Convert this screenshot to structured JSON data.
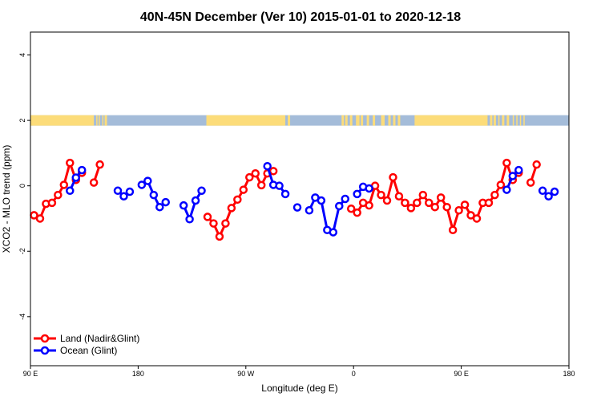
{
  "chart_data": {
    "type": "line",
    "title": "40N-45N December (Ver 10)   2015-01-01 to 2020-12-18",
    "xlabel": "Longitude (deg E)",
    "ylabel": "XCO2 - MLO trend (ppm)",
    "xlim": [
      90,
      540
    ],
    "ylim": [
      -5.5,
      4.7
    ],
    "x_axis_note": "x in degrees east, unwrapped so that 90 E on the left edge continues through 180, 270 (=90 W), 360 (=0), 450 (=90 E) to 540 (=180)",
    "x_ticks": [
      {
        "value": 90,
        "label": "90 E"
      },
      {
        "value": 180,
        "label": "180"
      },
      {
        "value": 270,
        "label": "90 W"
      },
      {
        "value": 360,
        "label": "0"
      },
      {
        "value": 450,
        "label": "90 E"
      },
      {
        "value": 540,
        "label": "180"
      }
    ],
    "y_ticks": [
      {
        "value": -4,
        "label": "-4"
      },
      {
        "value": -2,
        "label": "-2"
      },
      {
        "value": 0,
        "label": "0"
      },
      {
        "value": 2,
        "label": "2"
      },
      {
        "value": 4,
        "label": "4"
      }
    ],
    "land_strip": {
      "y_center": 2.0,
      "height": 0.32,
      "land_color": "#fcdc7a",
      "ocean_color": "#a4bcd9",
      "land_ranges": [
        [
          90,
          143
        ],
        [
          145,
          146
        ],
        [
          147,
          148
        ],
        [
          150,
          151
        ],
        [
          152,
          154
        ],
        [
          237,
          303
        ],
        [
          305,
          307
        ],
        [
          350,
          352
        ],
        [
          353,
          355
        ],
        [
          357,
          359
        ],
        [
          362,
          365
        ],
        [
          366,
          368
        ],
        [
          371,
          373
        ],
        [
          376,
          378
        ],
        [
          383,
          386
        ],
        [
          389,
          391
        ],
        [
          393,
          395
        ],
        [
          397,
          399
        ],
        [
          411,
          472
        ],
        [
          474,
          476
        ],
        [
          477,
          479
        ],
        [
          481,
          482
        ],
        [
          484,
          486
        ],
        [
          488,
          490
        ],
        [
          493,
          494
        ],
        [
          496,
          497
        ],
        [
          499,
          500
        ],
        [
          502,
          503
        ]
      ]
    },
    "legend": {
      "placement": "bottom-left",
      "entries": [
        "Land (Nadir&Glint)",
        "Ocean (Glint)"
      ]
    },
    "series": [
      {
        "name": "Land (Nadir&Glint)",
        "color": "#ff0000",
        "segments": [
          [
            [
              93,
              -0.9
            ],
            [
              98,
              -1.0
            ],
            [
              103,
              -0.55
            ],
            [
              108,
              -0.52
            ],
            [
              113,
              -0.28
            ],
            [
              118,
              0.03
            ],
            [
              123,
              0.7
            ],
            [
              128,
              0.18
            ],
            [
              133,
              0.4
            ]
          ],
          [
            [
              143,
              0.1
            ],
            [
              148,
              0.65
            ]
          ],
          [
            [
              238,
              -0.95
            ],
            [
              243,
              -1.15
            ],
            [
              248,
              -1.55
            ],
            [
              253,
              -1.15
            ],
            [
              258,
              -0.68
            ],
            [
              263,
              -0.42
            ],
            [
              268,
              -0.12
            ],
            [
              273,
              0.26
            ],
            [
              278,
              0.38
            ],
            [
              283,
              0.02
            ],
            [
              288,
              0.38
            ],
            [
              293,
              0.45
            ]
          ],
          [
            [
              358,
              -0.7
            ],
            [
              363,
              -0.82
            ],
            [
              368,
              -0.52
            ],
            [
              373,
              -0.6
            ],
            [
              378,
              0.0
            ],
            [
              383,
              -0.28
            ],
            [
              388,
              -0.45
            ],
            [
              393,
              0.26
            ],
            [
              398,
              -0.32
            ],
            [
              403,
              -0.52
            ],
            [
              408,
              -0.68
            ],
            [
              413,
              -0.52
            ],
            [
              418,
              -0.28
            ],
            [
              423,
              -0.52
            ],
            [
              428,
              -0.65
            ],
            [
              433,
              -0.36
            ],
            [
              438,
              -0.65
            ],
            [
              443,
              -1.35
            ],
            [
              448,
              -0.75
            ],
            [
              453,
              -0.58
            ],
            [
              458,
              -0.9
            ],
            [
              463,
              -1.0
            ],
            [
              468,
              -0.52
            ],
            [
              473,
              -0.52
            ],
            [
              478,
              -0.28
            ],
            [
              483,
              0.03
            ],
            [
              488,
              0.7
            ],
            [
              493,
              0.18
            ],
            [
              498,
              0.4
            ]
          ],
          [
            [
              508,
              0.1
            ],
            [
              513,
              0.65
            ]
          ]
        ]
      },
      {
        "name": "Ocean (Glint)",
        "color": "#0000ff",
        "segments": [
          [
            [
              123,
              -0.15
            ],
            [
              128,
              0.25
            ],
            [
              133,
              0.48
            ]
          ],
          [
            [
              163,
              -0.15
            ],
            [
              168,
              -0.32
            ],
            [
              173,
              -0.18
            ]
          ],
          [
            [
              183,
              0.03
            ],
            [
              188,
              0.15
            ],
            [
              193,
              -0.28
            ],
            [
              198,
              -0.65
            ],
            [
              203,
              -0.5
            ]
          ],
          [
            [
              218,
              -0.6
            ],
            [
              223,
              -1.02
            ],
            [
              228,
              -0.45
            ],
            [
              233,
              -0.15
            ]
          ],
          [
            [
              288,
              0.6
            ],
            [
              293,
              0.03
            ],
            [
              298,
              0.0
            ],
            [
              303,
              -0.25
            ]
          ],
          [
            [
              313,
              -0.66
            ]
          ],
          [
            [
              323,
              -0.75
            ],
            [
              328,
              -0.36
            ],
            [
              333,
              -0.45
            ],
            [
              338,
              -1.35
            ],
            [
              343,
              -1.42
            ],
            [
              348,
              -0.62
            ],
            [
              353,
              -0.4
            ]
          ],
          [
            [
              363,
              -0.25
            ],
            [
              368,
              -0.03
            ],
            [
              373,
              -0.08
            ]
          ],
          [
            [
              488,
              -0.12
            ],
            [
              493,
              0.3
            ],
            [
              498,
              0.48
            ]
          ],
          [
            [
              518,
              -0.15
            ],
            [
              523,
              -0.32
            ],
            [
              528,
              -0.18
            ]
          ]
        ]
      }
    ]
  }
}
